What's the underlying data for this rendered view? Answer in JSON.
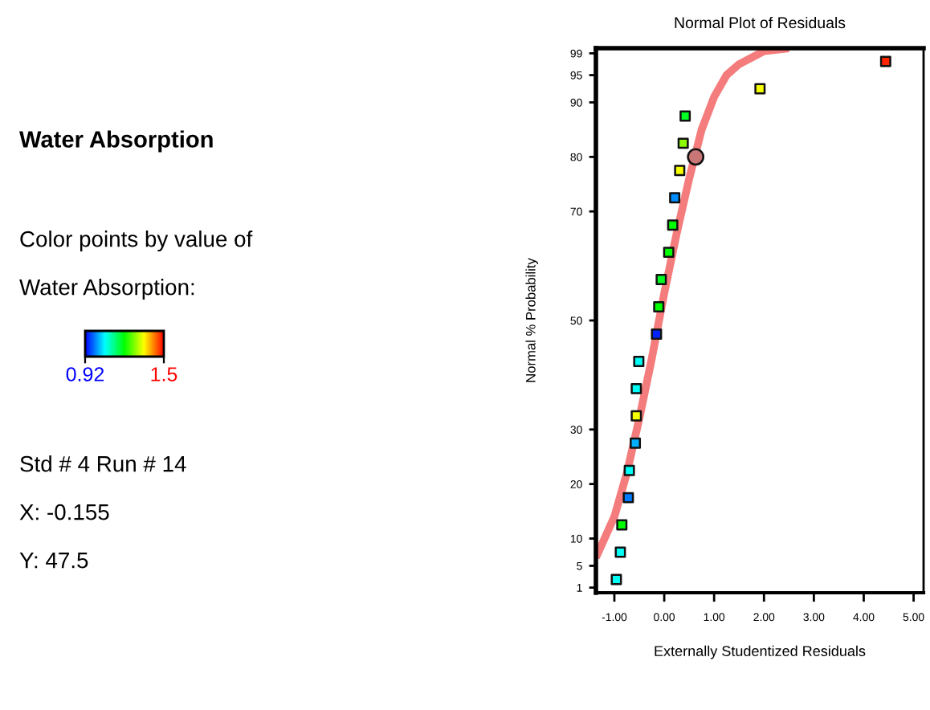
{
  "chart_data": {
    "type": "scatter",
    "title": "Normal Plot of Residuals",
    "subtitle": "Water Absorption",
    "xlabel": "Externally Studentized Residuals",
    "ylabel": "Normal % Probability",
    "clabel": "Color points by value of\nWater Absorption:",
    "clim": [
      0.92,
      1.5
    ],
    "cticks": [
      0.92,
      1.5
    ],
    "xlim": [
      -1.37,
      5.2
    ],
    "xticks": [
      {
        "value": -1,
        "label": "-1.00"
      },
      {
        "value": 0,
        "label": "0.00"
      },
      {
        "value": 1,
        "label": "1.00"
      },
      {
        "value": 2,
        "label": "2.00"
      },
      {
        "value": 3,
        "label": "3.00"
      },
      {
        "value": 4,
        "label": "4.00"
      },
      {
        "value": 5,
        "label": "5.00"
      }
    ],
    "ylim": [
      0.06,
      99.94
    ],
    "yticks": [
      1,
      5,
      10,
      20,
      30,
      50,
      70,
      80,
      90,
      95,
      99
    ],
    "series": [
      {
        "type": "line",
        "color": "#f47c7c",
        "x": [
          -1.37,
          -1.0,
          -0.75,
          -0.5,
          -0.25,
          0,
          0.25,
          0.5,
          0.75,
          1.0,
          1.25,
          1.5,
          2.0,
          2.5
        ],
        "values": [
          6.5,
          14,
          22,
          32,
          43,
          55,
          66,
          76,
          85,
          91,
          95,
          97,
          99.4,
          99.9
        ]
      },
      {
        "marker": "square",
        "x": [
          -0.96,
          -0.88,
          -0.85,
          -0.72,
          -0.7,
          -0.58,
          -0.56,
          -0.56,
          -0.51,
          -0.155,
          -0.11,
          -0.06,
          0.09,
          0.17,
          0.21,
          0.31,
          0.38,
          0.42,
          1.92,
          4.44
        ],
        "values": [
          2.5,
          7.5,
          12.5,
          17.5,
          22.5,
          27.5,
          32.5,
          37.5,
          42.5,
          47.5,
          52.5,
          57.5,
          62.5,
          67.5,
          72.5,
          77.5,
          82.5,
          87.5,
          92.5,
          97.5
        ],
        "colors": [
          "#00fff6",
          "#00fff6",
          "#00ff00",
          "#007bff",
          "#00fff6",
          "#00b0ff",
          "#f6ff00",
          "#00fff6",
          "#00fff6",
          "#0023ff",
          "#00ff00",
          "#00ff23",
          "#00ff00",
          "#00ff00",
          "#008dff",
          "#f6ff00",
          "#8dff00",
          "#00ff23",
          "#f6ff00",
          "#ff2300"
        ]
      },
      {
        "marker": "circle",
        "color": "#c87676",
        "x": [
          0.63
        ],
        "values": [
          80
        ]
      }
    ],
    "annotations": [
      "Std # 4 Run # 14",
      "X: -0.155",
      "Y: 47.5"
    ]
  }
}
